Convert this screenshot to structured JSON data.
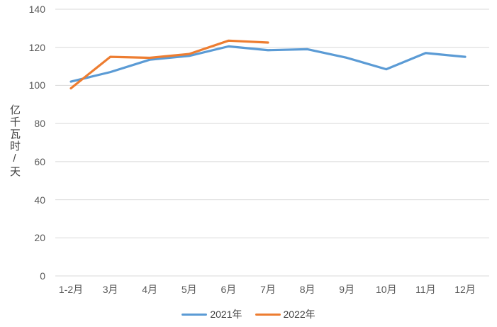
{
  "chart_data": {
    "type": "line",
    "categories": [
      "1-2月",
      "3月",
      "4月",
      "5月",
      "6月",
      "7月",
      "8月",
      "9月",
      "10月",
      "11月",
      "12月"
    ],
    "series": [
      {
        "name": "2021年",
        "color": "#5B9BD5",
        "values": [
          102,
          107,
          113.5,
          115.5,
          120.5,
          118.5,
          119,
          114.5,
          108.5,
          117,
          115
        ]
      },
      {
        "name": "2022年",
        "color": "#ED7D31",
        "values": [
          98.5,
          115,
          114.5,
          116.5,
          123.5,
          122.5
        ]
      }
    ],
    "title": "",
    "xlabel": "",
    "ylabel": "亿千瓦时/天",
    "ylim": [
      0,
      140
    ],
    "yticks": [
      0,
      20,
      40,
      60,
      80,
      100,
      120,
      140
    ],
    "grid": true,
    "legend_position": "bottom"
  },
  "colors": {
    "gridline": "#D9D9D9",
    "axis_line": "#D9D9D9",
    "tick_text": "#595959",
    "background": "#FFFFFF"
  }
}
